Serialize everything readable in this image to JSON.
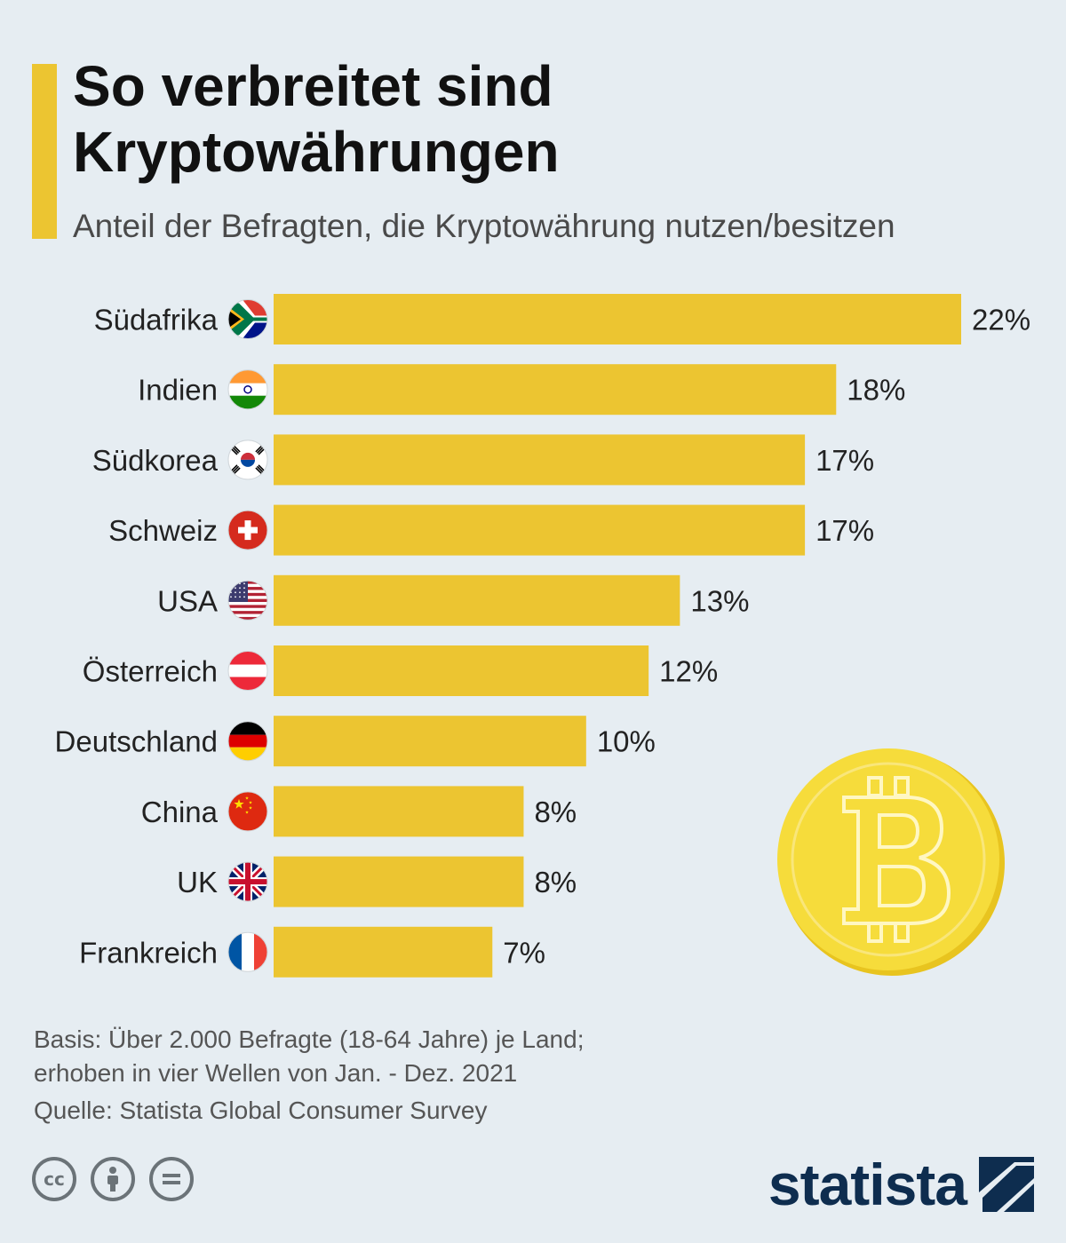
{
  "header": {
    "title": "So verbreitet sind Kryptowährungen",
    "subtitle": "Anteil der Befragten, die Kryptowährung nutzen/besitzen"
  },
  "colors": {
    "accent": "#ecc531",
    "bar": "#ecc531",
    "background": "#e6edf2",
    "coin": "#f2d22e",
    "brand": "#0e2d4f"
  },
  "chart_data": {
    "type": "bar",
    "orientation": "horizontal",
    "title": "So verbreitet sind Kryptowährungen",
    "subtitle": "Anteil der Befragten, die Kryptowährung nutzen/besitzen",
    "categories": [
      "Südafrika",
      "Indien",
      "Südkorea",
      "Schweiz",
      "USA",
      "Österreich",
      "Deutschland",
      "China",
      "UK",
      "Frankreich"
    ],
    "values": [
      22,
      18,
      17,
      17,
      13,
      12,
      10,
      8,
      8,
      7
    ],
    "value_labels": [
      "22%",
      "18%",
      "17%",
      "17%",
      "13%",
      "12%",
      "10%",
      "8%",
      "8%",
      "7%"
    ],
    "flags": [
      "south-africa-flag-icon",
      "india-flag-icon",
      "south-korea-flag-icon",
      "switzerland-flag-icon",
      "usa-flag-icon",
      "austria-flag-icon",
      "germany-flag-icon",
      "china-flag-icon",
      "uk-flag-icon",
      "france-flag-icon"
    ],
    "unit": "%",
    "xlim": [
      0,
      22
    ],
    "grid": false,
    "decoration": "bitcoin-coin-icon"
  },
  "footer": {
    "basis_line1": "Basis: Über 2.000 Befragte (18-64 Jahre) je Land;",
    "basis_line2": "erhoben in vier Wellen von Jan. - Dez. 2021",
    "source": "Quelle: Statista Global Consumer Survey",
    "license_icons": [
      "cc-icon",
      "by-icon",
      "nd-icon"
    ],
    "brand": "statista"
  }
}
